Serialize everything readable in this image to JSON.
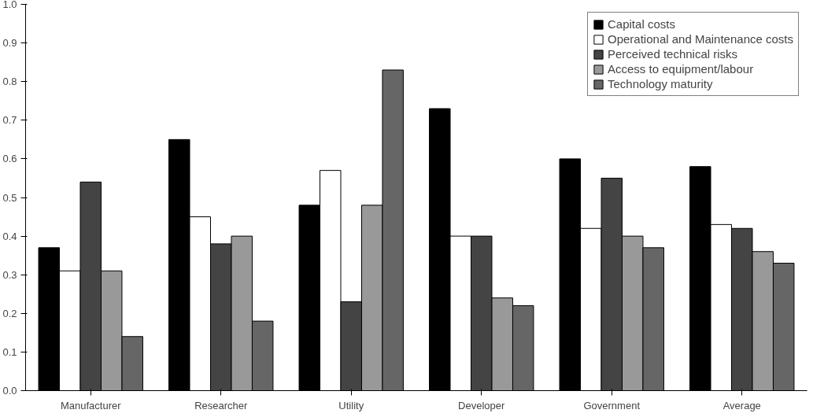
{
  "chart_data": {
    "type": "bar",
    "categories": [
      "Manufacturer",
      "Researcher",
      "Utility",
      "Developer",
      "Government",
      "Average"
    ],
    "series": [
      {
        "name": "Capital costs",
        "color": "#000000",
        "values": [
          0.37,
          0.65,
          0.48,
          0.73,
          0.6,
          0.58
        ]
      },
      {
        "name": "Operational and Maintenance costs",
        "color": "#ffffff",
        "values": [
          0.31,
          0.45,
          0.57,
          0.4,
          0.42,
          0.43
        ]
      },
      {
        "name": "Perceived technical risks",
        "color": "#444444",
        "values": [
          0.54,
          0.38,
          0.23,
          0.4,
          0.55,
          0.42
        ]
      },
      {
        "name": "Access to equipment/labour",
        "color": "#999999",
        "values": [
          0.31,
          0.4,
          0.48,
          0.24,
          0.4,
          0.36
        ]
      },
      {
        "name": "Technology maturity",
        "color": "#666666",
        "values": [
          0.14,
          0.18,
          0.83,
          0.22,
          0.37,
          0.33
        ]
      }
    ],
    "ylim": [
      0,
      1
    ],
    "yticks": [
      {
        "value": 0,
        "label": "0.0"
      },
      0.1,
      0.2,
      0.3,
      0.4,
      0.5,
      0.6,
      0.7,
      0.8,
      0.9,
      {
        "value": 1,
        "label": "1.0"
      }
    ],
    "grid": false,
    "legend": "top right"
  }
}
